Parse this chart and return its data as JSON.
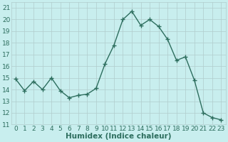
{
  "x": [
    0,
    1,
    2,
    3,
    4,
    5,
    6,
    7,
    8,
    9,
    10,
    11,
    12,
    13,
    14,
    15,
    16,
    17,
    18,
    19,
    20,
    21,
    22,
    23
  ],
  "y": [
    14.9,
    13.9,
    14.7,
    14.0,
    15.0,
    13.9,
    13.3,
    13.5,
    13.6,
    14.1,
    16.2,
    17.8,
    20.0,
    20.7,
    19.5,
    20.0,
    19.4,
    18.3,
    16.5,
    16.8,
    14.8,
    12.0,
    11.6,
    11.4
  ],
  "xlabel": "Humidex (Indice chaleur)",
  "xlim": [
    -0.5,
    23.5
  ],
  "ylim": [
    11,
    21.5
  ],
  "yticks": [
    11,
    12,
    13,
    14,
    15,
    16,
    17,
    18,
    19,
    20,
    21
  ],
  "xticks": [
    0,
    1,
    2,
    3,
    4,
    5,
    6,
    7,
    8,
    9,
    10,
    11,
    12,
    13,
    14,
    15,
    16,
    17,
    18,
    19,
    20,
    21,
    22,
    23
  ],
  "line_color": "#2d6e5e",
  "marker_color": "#2d6e5e",
  "bg_color": "#c8eeee",
  "grid_color": "#b0cccc",
  "font_color": "#2d6e5e",
  "font_size": 6.5,
  "xlabel_fontsize": 7.5,
  "linewidth": 1.0,
  "markersize": 2.5
}
